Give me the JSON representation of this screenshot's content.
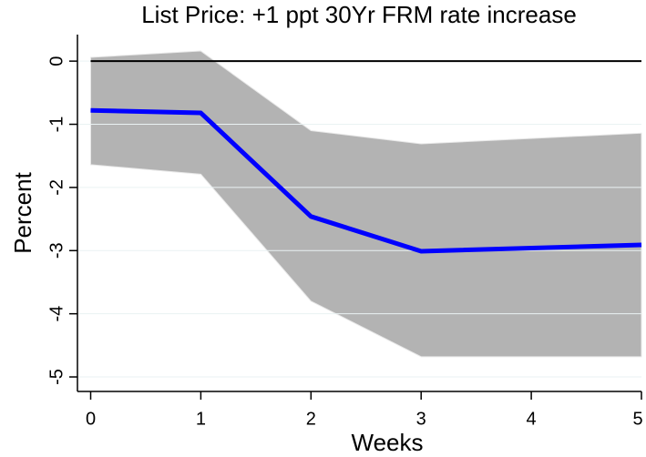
{
  "chart_data": {
    "type": "line",
    "title": "List Price: +1 ppt 30Yr FRM rate increase",
    "x_label": "Weeks",
    "y_label": "Percent",
    "x": [
      0,
      1,
      2,
      3,
      5
    ],
    "values": [
      -0.78,
      -0.82,
      -2.46,
      -3.01,
      -2.91
    ],
    "upper": [
      0.06,
      0.16,
      -1.1,
      -1.31,
      -1.14
    ],
    "lower": [
      -1.64,
      -1.79,
      -3.8,
      -4.68,
      -4.68
    ],
    "color": "#0000ff",
    "band_color": "#b3b3b3",
    "hline": 0,
    "xlim": [
      -0.12,
      5
    ],
    "ylim": [
      -5.23,
      0.42
    ],
    "xticks": [
      0,
      1,
      2,
      3,
      4,
      5
    ],
    "yticks": [
      0,
      -1,
      -2,
      -3,
      -4,
      -5
    ],
    "grid": true
  }
}
